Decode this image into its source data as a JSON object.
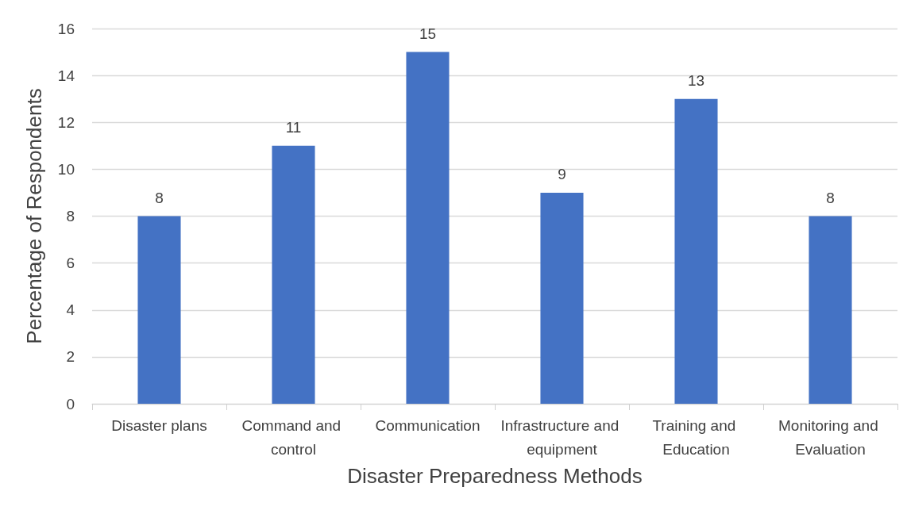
{
  "chart_data": {
    "type": "bar",
    "xlabel": "Disaster Preparedness Methods",
    "ylabel": "Percentage of Respondents",
    "categories": [
      "Disaster plans",
      "Command and control",
      "Communication",
      "Infrastructure and equipment",
      "Training and Education",
      "Monitoring and Evaluation"
    ],
    "values": [
      8,
      11,
      15,
      9,
      13,
      8
    ],
    "color": "#4472c4",
    "ylim": [
      0,
      16
    ],
    "yticks": [
      0,
      2,
      4,
      6,
      8,
      10,
      12,
      14,
      16
    ],
    "grid": "y",
    "data_labels": true
  }
}
